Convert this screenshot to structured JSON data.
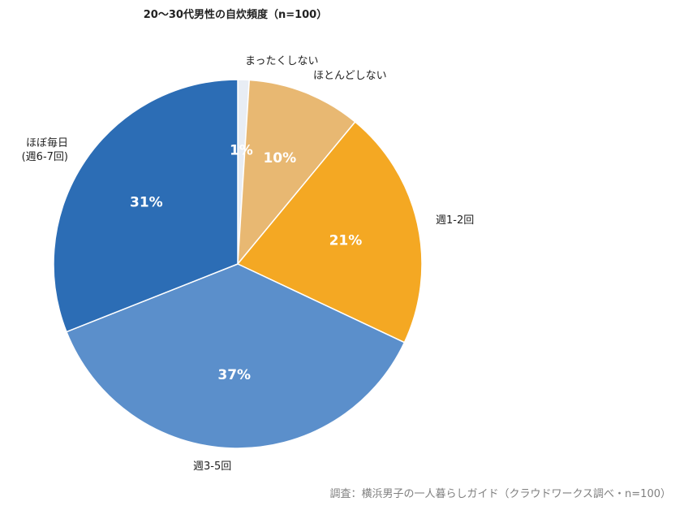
{
  "chart_data": {
    "type": "pie",
    "title": "20〜30代男性の自炊頻度（n=100）",
    "source": "調査：横浜男子の一人暮らしガイド（クラウドワークス調べ・n=100）",
    "start_angle_deg": 0,
    "direction": "clockwise",
    "slices": [
      {
        "label": "まったくしない",
        "value": 1,
        "percent_label": "1%",
        "color": "#e8edf4"
      },
      {
        "label": "ほとんどしない",
        "value": 10,
        "percent_label": "10%",
        "color": "#e8b872"
      },
      {
        "label": "週1-2回",
        "value": 21,
        "percent_label": "21%",
        "color": "#f4a823"
      },
      {
        "label": "週3-5回",
        "value": 37,
        "percent_label": "37%",
        "color": "#5b8fcb"
      },
      {
        "label": "ほぼ毎日\n(週6-7回)",
        "value": 31,
        "percent_label": "31%",
        "color": "#2c6db5"
      }
    ]
  }
}
